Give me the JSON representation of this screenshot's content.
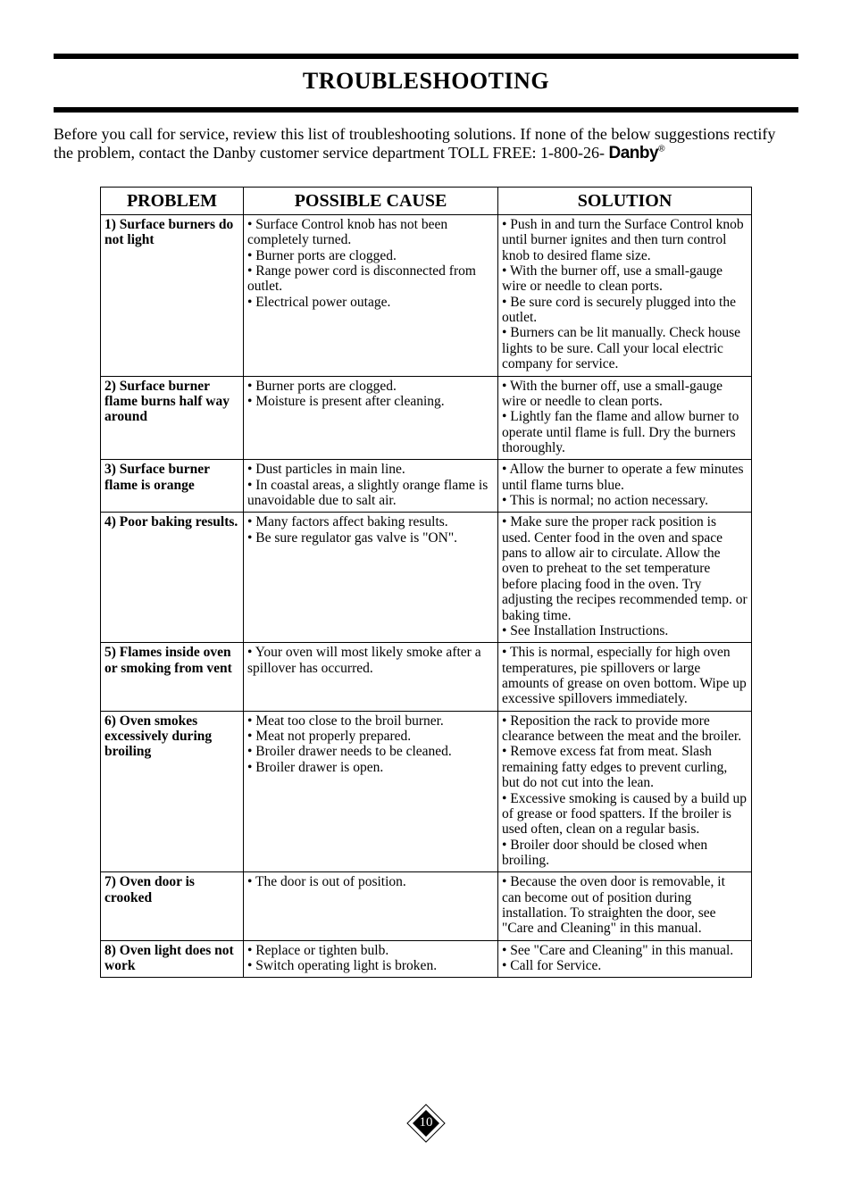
{
  "title": "TROUBLESHOOTING",
  "intro_text": "Before you call for service, review this list of troubleshooting solutions. If none of the below suggestions rectify the problem, contact the Danby customer service department TOLL FREE: 1-800-26- ",
  "brand": "Danby",
  "brand_mark": "®",
  "columns": [
    "PROBLEM",
    "POSSIBLE CAUSE",
    "SOLUTION"
  ],
  "rows": [
    {
      "problem": "1) Surface burners do not light",
      "cause": "• Surface Control knob has not been completely turned.\n• Burner ports are clogged.\n• Range power cord is disconnected from outlet.\n• Electrical power outage.",
      "solution": "• Push in and turn the Surface Control knob  until burner ignites and then turn control knob to desired flame size.\n• With the burner off, use a small-gauge wire or needle to clean ports.\n• Be sure cord is securely plugged into the outlet.\n• Burners can be lit manually. Check house lights to be sure. Call your local electric company for service."
    },
    {
      "problem": "2) Surface burner flame burns half way around",
      "cause": "• Burner ports are clogged.\n• Moisture is present after cleaning.",
      "solution": "• With the burner off, use a small-gauge wire or needle to clean ports.\n• Lightly fan the flame and allow burner to operate until flame is full. Dry the burners thoroughly."
    },
    {
      "problem": "3) Surface burner flame is orange",
      "cause": "• Dust particles in main line.\n• In coastal areas, a slightly orange flame is unavoidable due to salt air.",
      "solution": "• Allow the burner to operate a few minutes until flame turns blue.\n• This is normal; no action necessary."
    },
    {
      "problem": "4) Poor baking results.",
      "cause": "• Many factors affect baking results.\n• Be sure regulator gas valve is \"ON\".",
      "solution": "• Make sure the proper rack position is used. Center food in the oven and space pans to allow air to circulate. Allow the oven to preheat to the set temperature before placing food in the oven. Try adjusting the recipes recommended temp. or baking time.\n• See Installation Instructions."
    },
    {
      "problem": "5) Flames inside oven or smoking from vent",
      "cause": "• Your oven will most likely smoke after a spillover has occurred.",
      "solution": "• This is normal, especially for high oven temperatures, pie spillovers or large amounts of grease on oven bottom. Wipe up excessive spillovers immediately."
    },
    {
      "problem": "6) Oven smokes excessively during broiling",
      "cause": "• Meat too close to the broil burner.\n• Meat not properly prepared.\n• Broiler drawer needs to be cleaned.\n• Broiler drawer is open.",
      "solution": "• Reposition the rack to provide more clearance between the meat and the broiler.\n• Remove excess fat from meat. Slash remaining fatty edges to prevent curling, but do not cut into the lean.\n• Excessive smoking is caused by a build up of grease or food spatters. If the broiler is used often, clean on a regular basis.\n• Broiler door should be closed when broiling."
    },
    {
      "problem": "7) Oven door is crooked",
      "cause": "• The door is out of position.",
      "solution": "• Because the oven door is removable, it can become out of position during installation. To straighten the door, see \"Care and Cleaning\" in this manual."
    },
    {
      "problem": "8) Oven light does not work",
      "cause": "• Replace or tighten bulb.\n• Switch operating light is broken.",
      "solution": "• See \"Care and Cleaning\" in this manual.\n• Call for Service."
    }
  ],
  "page_number": "10"
}
